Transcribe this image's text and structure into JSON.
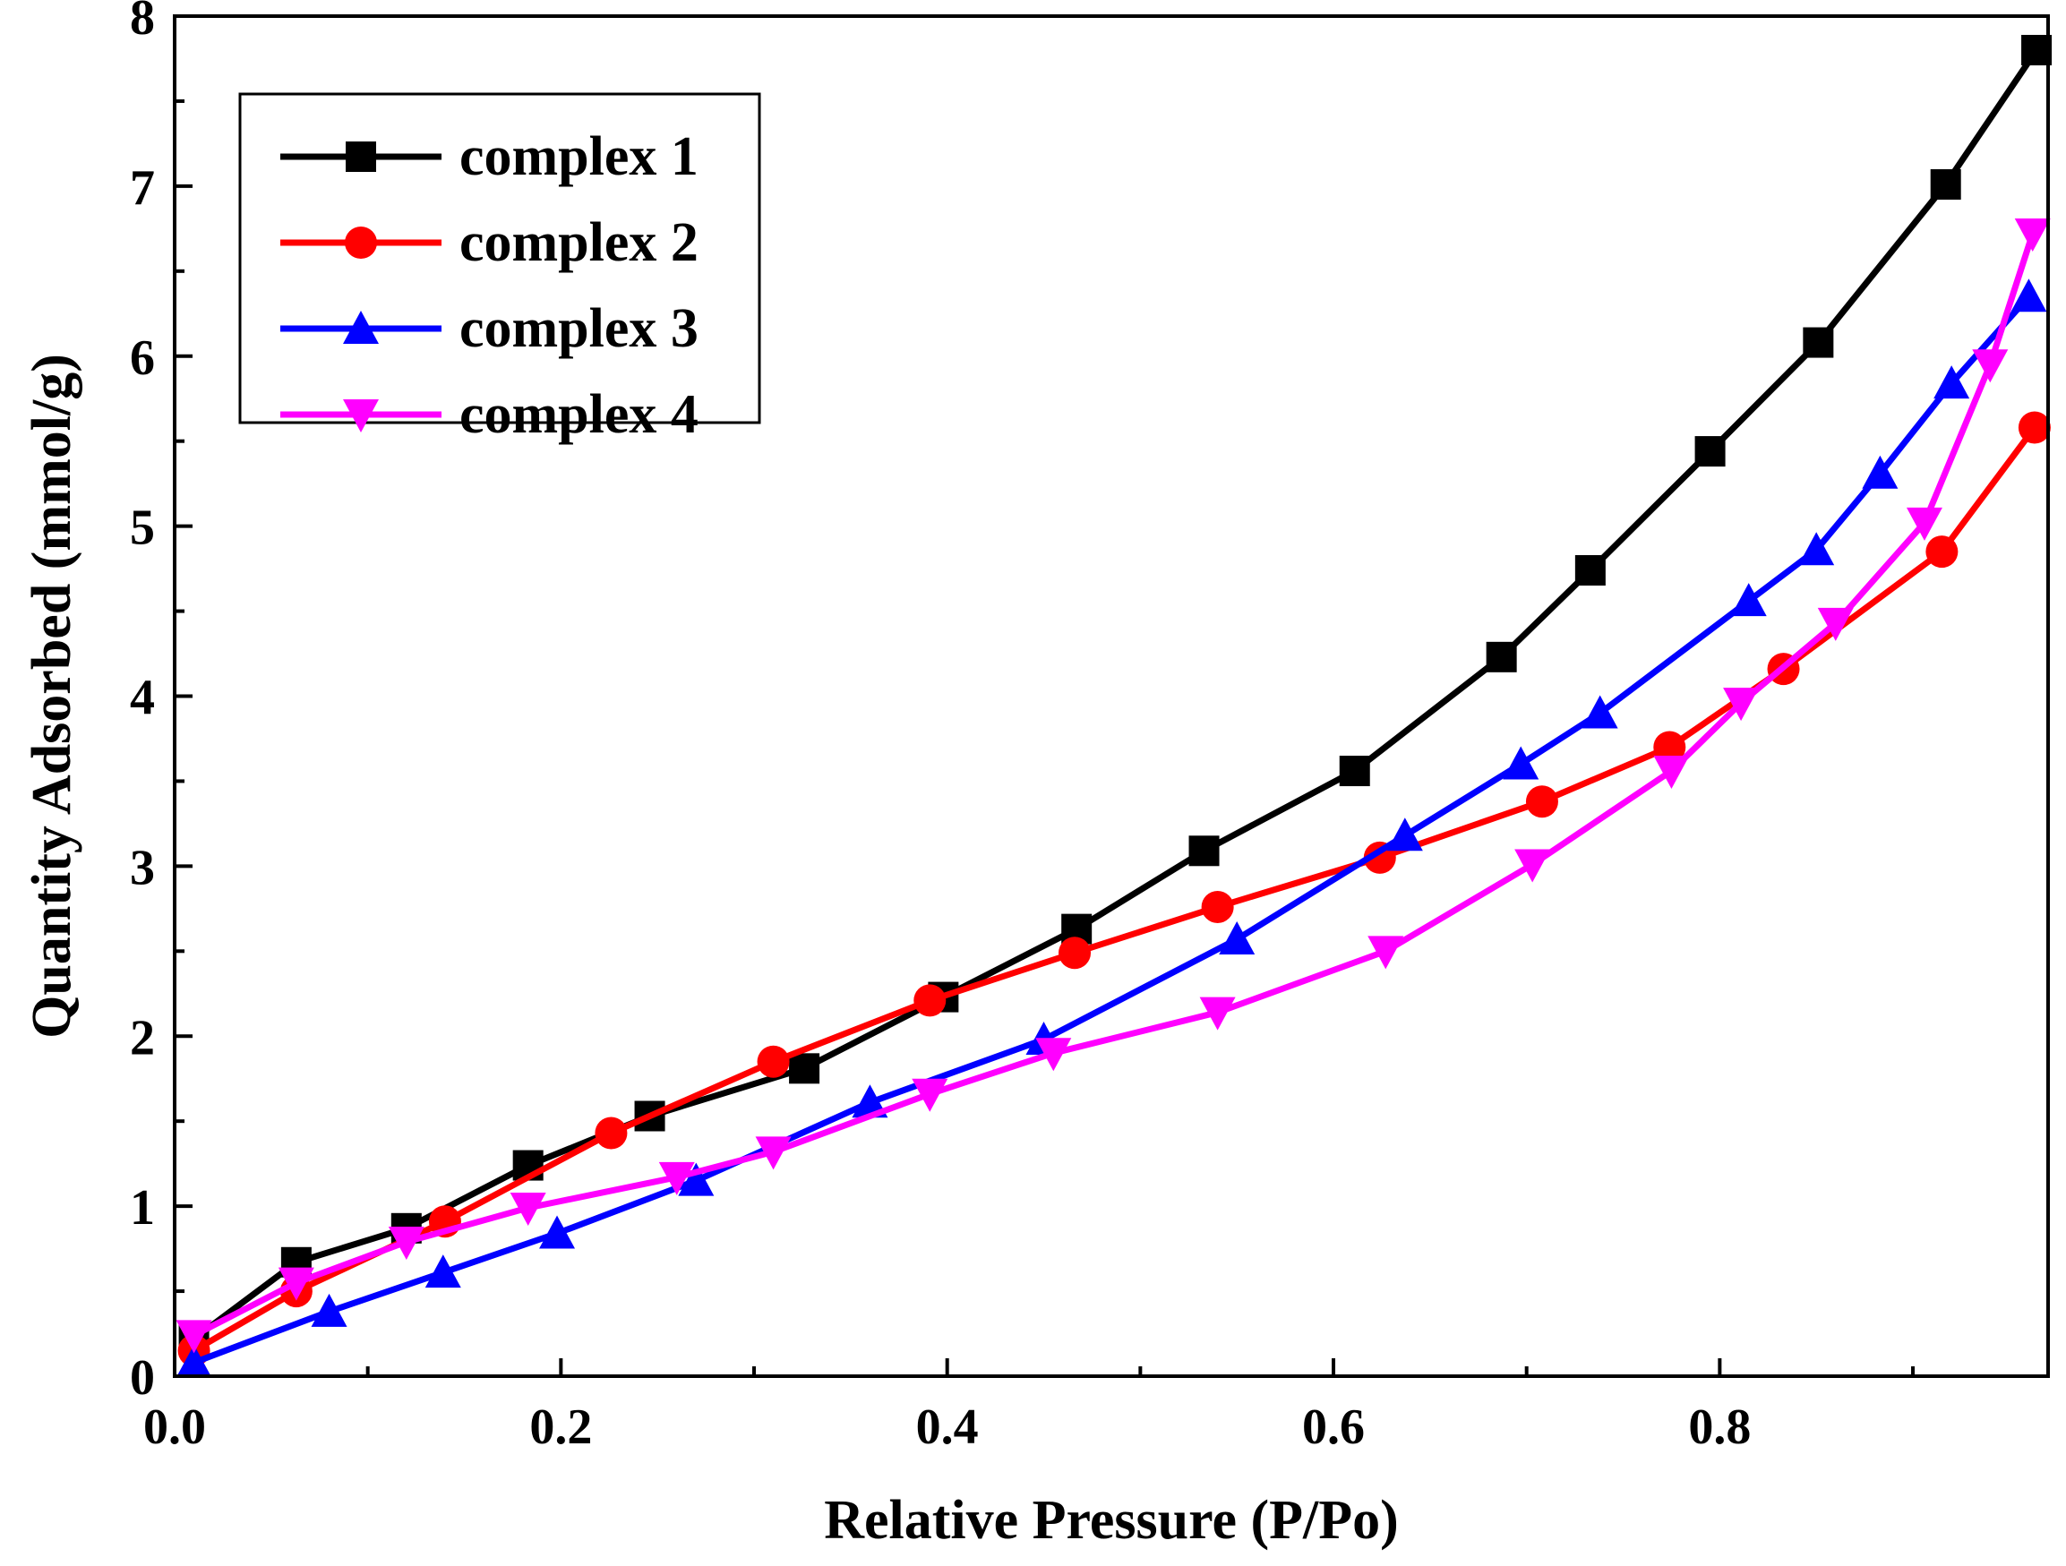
{
  "chart_data": {
    "type": "line",
    "title": "",
    "xlabel": "Relative Pressure (P/Po)",
    "ylabel": "Quantity Adsorbed (mmol/g)",
    "xlim": [
      0.0,
      0.97
    ],
    "ylim": [
      0,
      8
    ],
    "xticks": [
      0.0,
      0.2,
      0.4,
      0.6,
      0.8
    ],
    "xtick_labels": [
      "0.0",
      "0.2",
      "0.4",
      "0.6",
      "0.8"
    ],
    "yticks": [
      0,
      1,
      2,
      3,
      4,
      5,
      6,
      7,
      8
    ],
    "ytick_labels": [
      "0",
      "1",
      "2",
      "3",
      "4",
      "5",
      "6",
      "7",
      "8"
    ],
    "grid": false,
    "legend_position": "top-left",
    "series": [
      {
        "name": "complex 1",
        "color": "#000000",
        "marker": "square",
        "x": [
          0.01,
          0.063,
          0.12,
          0.183,
          0.246,
          0.326,
          0.398,
          0.467,
          0.533,
          0.611,
          0.687,
          0.733,
          0.795,
          0.851,
          0.917,
          0.964
        ],
        "y": [
          0.22,
          0.67,
          0.87,
          1.24,
          1.53,
          1.81,
          2.23,
          2.63,
          3.09,
          3.56,
          4.23,
          4.74,
          5.44,
          6.08,
          7.01,
          7.8
        ]
      },
      {
        "name": "complex 2",
        "color": "#ff0000",
        "marker": "circle",
        "x": [
          0.01,
          0.063,
          0.14,
          0.226,
          0.31,
          0.391,
          0.466,
          0.54,
          0.624,
          0.708,
          0.774,
          0.833,
          0.915,
          0.963
        ],
        "y": [
          0.15,
          0.5,
          0.91,
          1.43,
          1.85,
          2.21,
          2.49,
          2.76,
          3.05,
          3.38,
          3.7,
          4.16,
          4.85,
          5.58
        ]
      },
      {
        "name": "complex 3",
        "color": "#0000ff",
        "marker": "triangle-up",
        "x": [
          0.01,
          0.08,
          0.139,
          0.198,
          0.27,
          0.36,
          0.45,
          0.55,
          0.637,
          0.697,
          0.738,
          0.815,
          0.85,
          0.883,
          0.92,
          0.96
        ],
        "y": [
          0.08,
          0.38,
          0.61,
          0.84,
          1.15,
          1.61,
          1.98,
          2.57,
          3.18,
          3.6,
          3.9,
          4.56,
          4.86,
          5.31,
          5.84,
          6.35
        ]
      },
      {
        "name": "complex 4",
        "color": "#ff00ff",
        "marker": "triangle-down",
        "x": [
          0.01,
          0.063,
          0.12,
          0.183,
          0.26,
          0.31,
          0.391,
          0.455,
          0.54,
          0.627,
          0.703,
          0.775,
          0.811,
          0.86,
          0.906,
          0.94,
          0.962
        ],
        "y": [
          0.24,
          0.55,
          0.79,
          0.99,
          1.17,
          1.32,
          1.66,
          1.9,
          2.14,
          2.5,
          3.01,
          3.56,
          3.96,
          4.43,
          5.02,
          5.95,
          6.72
        ]
      }
    ]
  }
}
